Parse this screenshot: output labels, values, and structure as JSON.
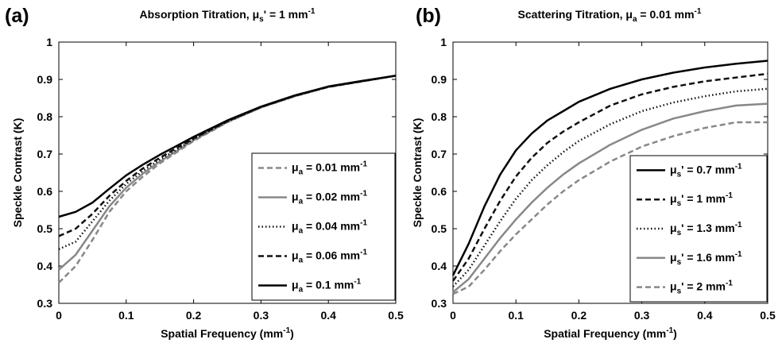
{
  "chart_data": [
    {
      "panel_label": "(a)",
      "type": "line",
      "title": {
        "base": "Absorption Titration, ",
        "mu": "μ",
        "sub": "s",
        "rest": "' = 1 mm",
        "sup": "-1"
      },
      "xlabel": {
        "base": "Spatial Frequency (mm",
        "sup": "-1",
        "tail": ")"
      },
      "ylabel": "Speckle Contrast (K)",
      "xlim": [
        0,
        0.5
      ],
      "ylim": [
        0.3,
        1
      ],
      "x_ticks": [
        "0",
        "0.1",
        "0.2",
        "0.3",
        "0.4",
        "0.5"
      ],
      "y_ticks": [
        "0.3",
        "0.4",
        "0.5",
        "0.6",
        "0.7",
        "0.8",
        "0.9",
        "1"
      ],
      "legend_position": "lower-right",
      "x": [
        0,
        0.025,
        0.05,
        0.075,
        0.1,
        0.125,
        0.15,
        0.175,
        0.2,
        0.25,
        0.3,
        0.35,
        0.4,
        0.45,
        0.5
      ],
      "series": [
        {
          "name": {
            "mu": "μ",
            "sub": "a",
            "rest": " = 0.01 mm",
            "sup": "-1"
          },
          "color": "#888888",
          "style": "dashed",
          "values": [
            0.355,
            0.4,
            0.47,
            0.545,
            0.6,
            0.64,
            0.675,
            0.705,
            0.735,
            0.785,
            0.825,
            0.855,
            0.88,
            0.895,
            0.91
          ]
        },
        {
          "name": {
            "mu": "μ",
            "sub": "a",
            "rest": " = 0.02 mm",
            "sup": "-1"
          },
          "color": "#888888",
          "style": "solid",
          "values": [
            0.39,
            0.43,
            0.495,
            0.56,
            0.61,
            0.648,
            0.68,
            0.708,
            0.737,
            0.786,
            0.825,
            0.855,
            0.88,
            0.895,
            0.91
          ]
        },
        {
          "name": {
            "mu": "μ",
            "sub": "a",
            "rest": " = 0.04 mm",
            "sup": "-1"
          },
          "color": "#111111",
          "style": "dotted",
          "values": [
            0.445,
            0.465,
            0.52,
            0.575,
            0.62,
            0.655,
            0.685,
            0.712,
            0.74,
            0.787,
            0.826,
            0.856,
            0.88,
            0.895,
            0.91
          ]
        },
        {
          "name": {
            "mu": "μ",
            "sub": "a",
            "rest": " = 0.06 mm",
            "sup": "-1"
          },
          "color": "#111111",
          "style": "dashed",
          "values": [
            0.48,
            0.5,
            0.54,
            0.588,
            0.628,
            0.662,
            0.69,
            0.716,
            0.742,
            0.788,
            0.826,
            0.856,
            0.88,
            0.895,
            0.91
          ]
        },
        {
          "name": {
            "mu": "μ",
            "sub": "a",
            "rest": " = 0.1 mm",
            "sup": "-1"
          },
          "color": "#000000",
          "style": "solid",
          "values": [
            0.532,
            0.545,
            0.57,
            0.607,
            0.643,
            0.672,
            0.698,
            0.722,
            0.746,
            0.79,
            0.827,
            0.857,
            0.881,
            0.896,
            0.91
          ]
        }
      ]
    },
    {
      "panel_label": "(b)",
      "type": "line",
      "title": {
        "base": "Scattering Titration, ",
        "mu": "μ",
        "sub": "a",
        "rest": " = 0.01 mm",
        "sup": "-1"
      },
      "xlabel": {
        "base": "Spatial Frequency (mm",
        "sup": "-1",
        "tail": ")"
      },
      "ylabel": "Speckle Contrast (K)",
      "xlim": [
        0,
        0.5
      ],
      "ylim": [
        0.3,
        1
      ],
      "x_ticks": [
        "0",
        "0.1",
        "0.2",
        "0.3",
        "0.4",
        "0.5"
      ],
      "y_ticks": [
        "0.3",
        "0.4",
        "0.5",
        "0.6",
        "0.7",
        "0.8",
        "0.9",
        "1"
      ],
      "legend_position": "lower-right",
      "x": [
        0,
        0.025,
        0.05,
        0.075,
        0.1,
        0.125,
        0.15,
        0.175,
        0.2,
        0.25,
        0.3,
        0.35,
        0.4,
        0.45,
        0.5
      ],
      "series": [
        {
          "name": {
            "mu": "μ",
            "sub": "s",
            "rest": "' = 0.7 mm",
            "sup": "-1"
          },
          "color": "#000000",
          "style": "solid",
          "values": [
            0.375,
            0.46,
            0.56,
            0.645,
            0.71,
            0.755,
            0.79,
            0.815,
            0.84,
            0.875,
            0.9,
            0.918,
            0.932,
            0.942,
            0.95
          ]
        },
        {
          "name": {
            "mu": "μ",
            "sub": "s",
            "rest": "' = 1 mm",
            "sup": "-1"
          },
          "color": "#111111",
          "style": "dashed",
          "values": [
            0.36,
            0.42,
            0.5,
            0.575,
            0.64,
            0.69,
            0.73,
            0.76,
            0.785,
            0.83,
            0.86,
            0.88,
            0.895,
            0.905,
            0.915
          ]
        },
        {
          "name": {
            "mu": "μ",
            "sub": "s",
            "rest": "' = 1.3 mm",
            "sup": "-1"
          },
          "color": "#111111",
          "style": "dotted",
          "values": [
            0.345,
            0.39,
            0.455,
            0.52,
            0.58,
            0.63,
            0.67,
            0.705,
            0.735,
            0.78,
            0.815,
            0.838,
            0.855,
            0.868,
            0.875
          ]
        },
        {
          "name": {
            "mu": "μ",
            "sub": "s",
            "rest": "' = 1.6 mm",
            "sup": "-1"
          },
          "color": "#888888",
          "style": "solid",
          "values": [
            0.33,
            0.365,
            0.42,
            0.475,
            0.525,
            0.57,
            0.61,
            0.645,
            0.675,
            0.725,
            0.765,
            0.795,
            0.815,
            0.83,
            0.835
          ]
        },
        {
          "name": {
            "mu": "μ",
            "sub": "s",
            "rest": "' = 2 mm",
            "sup": "-1"
          },
          "color": "#888888",
          "style": "dashed",
          "values": [
            0.325,
            0.345,
            0.39,
            0.44,
            0.485,
            0.525,
            0.565,
            0.6,
            0.63,
            0.68,
            0.72,
            0.748,
            0.77,
            0.785,
            0.785
          ]
        }
      ]
    }
  ]
}
